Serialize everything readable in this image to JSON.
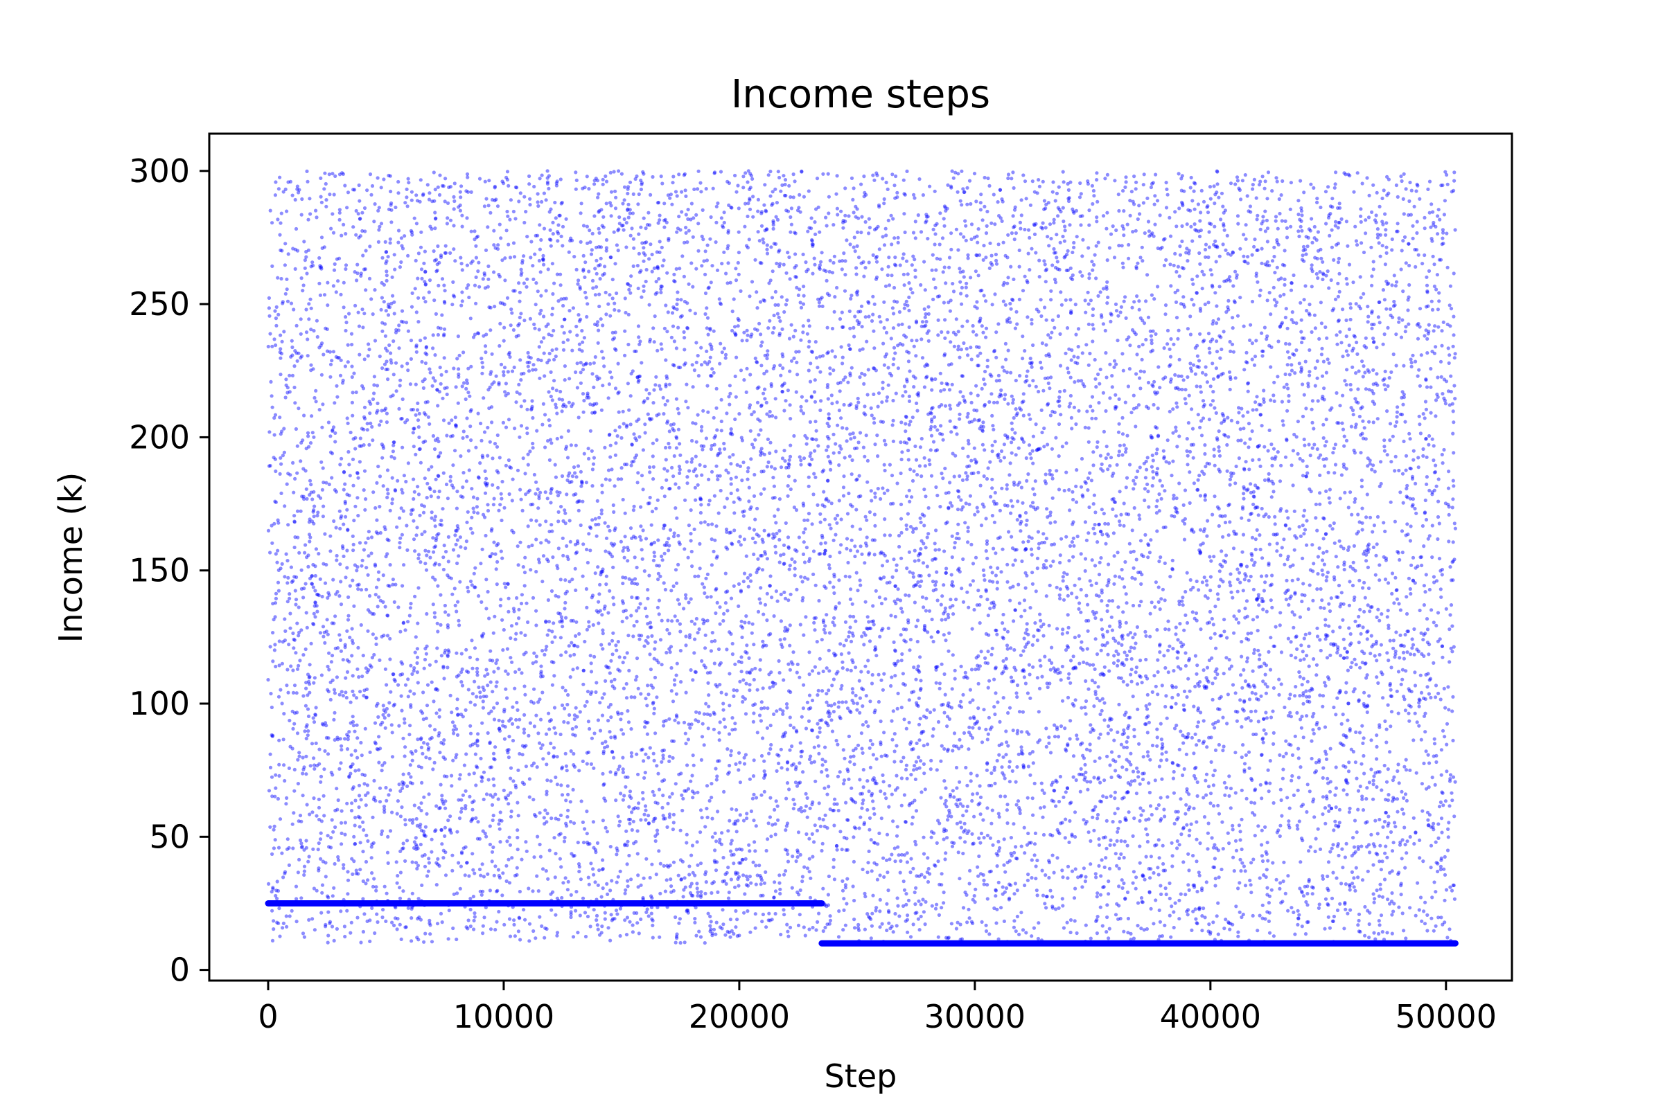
{
  "chart_data": {
    "type": "scatter",
    "title": "Income steps",
    "xlabel": "Step",
    "ylabel": "Income (k)",
    "xlim": [
      -2500,
      52800
    ],
    "ylim": [
      -4,
      314
    ],
    "xticks": [
      0,
      10000,
      20000,
      30000,
      40000,
      50000
    ],
    "yticks": [
      0,
      50,
      100,
      150,
      200,
      250,
      300
    ],
    "grid": false,
    "legend": "none",
    "series": [
      {
        "marker": "dot",
        "color": "#0000ff",
        "description": "Random uniform scatter across all steps",
        "x_range": [
          0,
          50400
        ],
        "y_range": [
          10,
          300
        ],
        "count": 12000
      },
      {
        "marker": "line",
        "color": "#0000ff",
        "points": [
          [
            0,
            25
          ],
          [
            23500,
            25
          ]
        ]
      },
      {
        "marker": "line",
        "color": "#0000ff",
        "points": [
          [
            23500,
            10
          ],
          [
            50400,
            10
          ]
        ]
      }
    ]
  }
}
